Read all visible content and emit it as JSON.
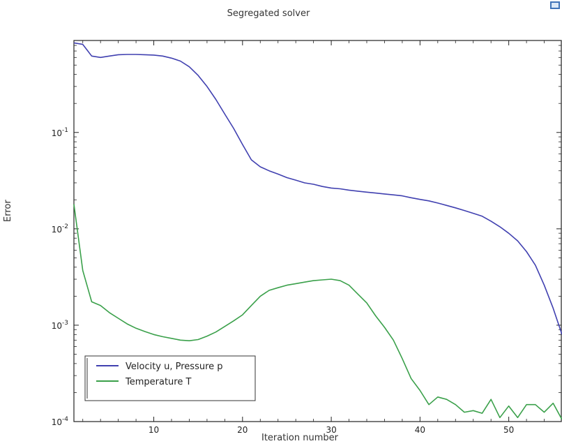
{
  "colors": {
    "series1": "#4040b0",
    "series2": "#3aa04a",
    "frame": "#222222",
    "icon": "#3f73b8"
  },
  "icons": {
    "corner": "plot-settings-icon"
  },
  "chart_data": {
    "type": "line",
    "title": "Segregated solver",
    "xlabel": "Iteration number",
    "ylabel": "Error",
    "xlim": [
      1,
      56
    ],
    "ylim": [
      0.0001,
      0.9
    ],
    "yscale": "log",
    "grid": false,
    "legend_position": "bottom-left",
    "x_ticks": [
      10,
      20,
      30,
      40,
      50
    ],
    "x_tick_labels": [
      "10",
      "20",
      "30",
      "40",
      "50"
    ],
    "y_ticks": [
      {
        "value": 0.1,
        "base": "10",
        "exp": "-1"
      },
      {
        "value": 0.01,
        "base": "10",
        "exp": "-2"
      },
      {
        "value": 0.001,
        "base": "10",
        "exp": "-3"
      },
      {
        "value": 0.0001,
        "base": "10",
        "exp": "-4"
      }
    ],
    "series": [
      {
        "name": "Velocity u, Pressure p",
        "color": "#4040b0",
        "x": [
          1,
          2,
          3,
          4,
          5,
          6,
          7,
          8,
          9,
          10,
          11,
          12,
          13,
          14,
          15,
          16,
          17,
          18,
          19,
          20,
          21,
          22,
          23,
          24,
          25,
          26,
          27,
          28,
          29,
          30,
          31,
          32,
          33,
          34,
          35,
          36,
          37,
          38,
          39,
          40,
          41,
          42,
          43,
          44,
          45,
          46,
          47,
          48,
          49,
          50,
          51,
          52,
          53,
          54,
          55,
          56
        ],
        "y": [
          0.85,
          0.82,
          0.62,
          0.6,
          0.62,
          0.64,
          0.645,
          0.645,
          0.64,
          0.635,
          0.62,
          0.59,
          0.55,
          0.48,
          0.39,
          0.3,
          0.22,
          0.155,
          0.11,
          0.075,
          0.052,
          0.044,
          0.04,
          0.037,
          0.034,
          0.032,
          0.03,
          0.029,
          0.0275,
          0.0265,
          0.026,
          0.0252,
          0.0246,
          0.024,
          0.0235,
          0.023,
          0.0225,
          0.022,
          0.021,
          0.0202,
          0.0195,
          0.0185,
          0.0175,
          0.0165,
          0.0155,
          0.0145,
          0.0135,
          0.012,
          0.0105,
          0.009,
          0.0075,
          0.0058,
          0.0042,
          0.0026,
          0.0015,
          0.0008
        ]
      },
      {
        "name": "Temperature T",
        "color": "#3aa04a",
        "x": [
          1,
          2,
          3,
          4,
          5,
          6,
          7,
          8,
          9,
          10,
          11,
          12,
          13,
          14,
          15,
          16,
          17,
          18,
          19,
          20,
          21,
          22,
          23,
          24,
          25,
          26,
          27,
          28,
          29,
          30,
          31,
          32,
          33,
          34,
          35,
          36,
          37,
          38,
          39,
          40,
          41,
          42,
          43,
          44,
          45,
          46,
          47,
          48,
          49,
          50,
          51,
          52,
          53,
          54,
          55,
          56
        ],
        "y": [
          0.018,
          0.0037,
          0.00175,
          0.0016,
          0.00135,
          0.00118,
          0.00103,
          0.00093,
          0.00086,
          0.0008,
          0.00076,
          0.00073,
          0.0007,
          0.00069,
          0.00071,
          0.00077,
          0.00085,
          0.00097,
          0.00111,
          0.00128,
          0.0016,
          0.002,
          0.0023,
          0.00245,
          0.0026,
          0.0027,
          0.0028,
          0.0029,
          0.00295,
          0.003,
          0.0029,
          0.0026,
          0.0021,
          0.0017,
          0.00125,
          0.00095,
          0.0007,
          0.00045,
          0.00028,
          0.00021,
          0.00015,
          0.00018,
          0.00017,
          0.00015,
          0.000125,
          0.00013,
          0.000122,
          0.00017,
          0.00011,
          0.000145,
          0.00011,
          0.00015,
          0.00015,
          0.000125,
          0.000155,
          0.000105
        ]
      }
    ]
  }
}
